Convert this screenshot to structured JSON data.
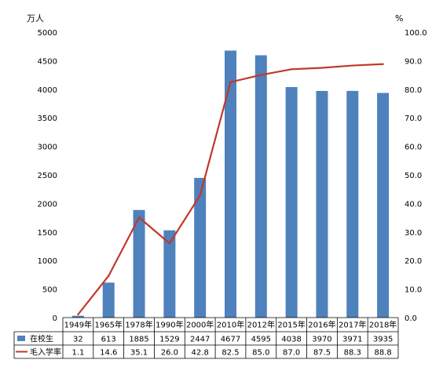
{
  "chart_data": {
    "type": "bar",
    "title": "",
    "categories": [
      "1949年",
      "1965年",
      "1978年",
      "1990年",
      "2000年",
      "2010年",
      "2012年",
      "2015年",
      "2016年",
      "2017年",
      "2018年"
    ],
    "series": [
      {
        "name": "在校生",
        "type": "bar",
        "axis": "left",
        "color": "#4F81BD",
        "values": [
          32,
          613,
          1885,
          1529,
          2447,
          4677,
          4595,
          4038,
          3970,
          3971,
          3935
        ]
      },
      {
        "name": "毛入学率",
        "type": "line",
        "axis": "right",
        "color": "#C0392B",
        "values": [
          1.1,
          14.6,
          35.1,
          26.0,
          42.8,
          82.5,
          85.0,
          87.0,
          87.5,
          88.3,
          88.8
        ]
      }
    ],
    "y_left": {
      "unit": "万人",
      "min": 0,
      "max": 5000,
      "step": 500,
      "ticks": [
        "0",
        "500",
        "1000",
        "1500",
        "2000",
        "2500",
        "3000",
        "3500",
        "4000",
        "4500",
        "5000"
      ]
    },
    "y_right": {
      "unit": "%",
      "min": 0,
      "max": 100,
      "step": 10,
      "ticks": [
        "0.0",
        "10.0",
        "20.0",
        "30.0",
        "40.0",
        "50.0",
        "60.0",
        "70.0",
        "80.0",
        "90.0",
        "100.0"
      ]
    },
    "table": {
      "row_labels": [
        "在校生",
        "毛入学率"
      ],
      "rows": [
        [
          "32",
          "613",
          "1885",
          "1529",
          "2447",
          "4677",
          "4595",
          "4038",
          "3970",
          "3971",
          "3935"
        ],
        [
          "1.1",
          "14.6",
          "35.1",
          "26.0",
          "42.8",
          "82.5",
          "85.0",
          "87.0",
          "87.5",
          "88.3",
          "88.8"
        ]
      ]
    },
    "grid": false,
    "legend": "table-left"
  }
}
